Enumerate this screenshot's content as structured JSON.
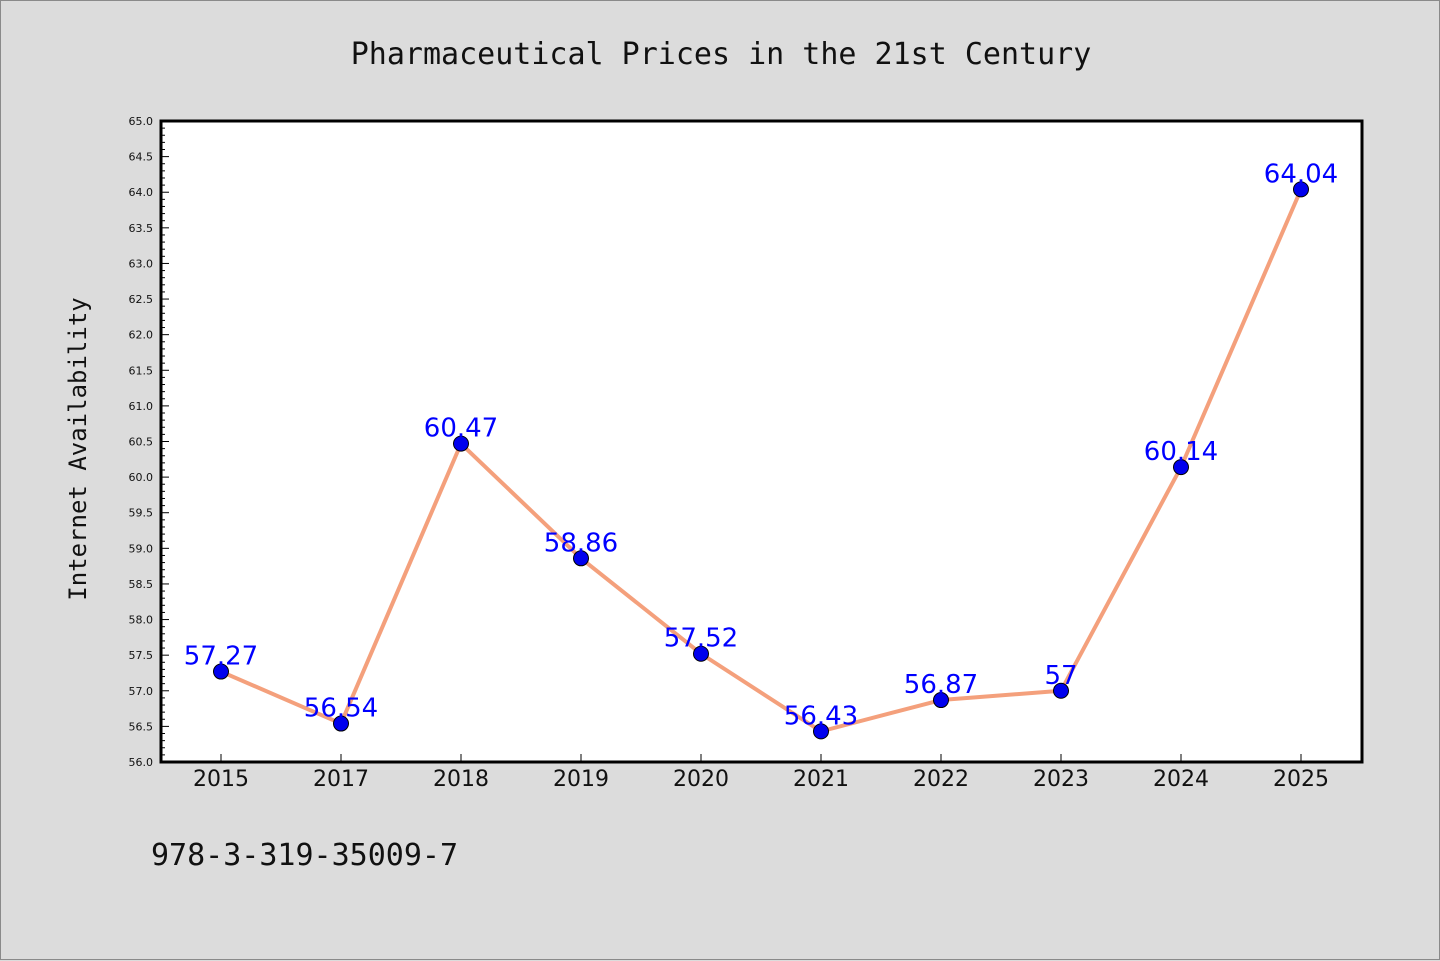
{
  "chart_data": {
    "type": "line",
    "title": "Pharmaceutical Prices in the 21st Century",
    "xlabel": "",
    "ylabel": "Internet Availability",
    "categories": [
      "2015",
      "2017",
      "2018",
      "2019",
      "2020",
      "2021",
      "2022",
      "2023",
      "2024",
      "2025"
    ],
    "series": [
      {
        "values": [
          57.27,
          56.54,
          60.47,
          58.86,
          57.52,
          56.43,
          56.87,
          57.0,
          60.14,
          64.04
        ],
        "data_labels": [
          "57.27",
          "56.54",
          "60.47",
          "58.86",
          "57.52",
          "56.43",
          "56.87",
          "57",
          "60.14",
          "64.04"
        ],
        "line_color": "#f4a07c",
        "marker_color": "#0000ee"
      }
    ],
    "ylim": [
      56.0,
      65.0
    ],
    "yticks": [
      "56.0",
      "56.5",
      "57.0",
      "57.5",
      "58.0",
      "58.5",
      "59.0",
      "59.5",
      "60.0",
      "60.5",
      "61.0",
      "61.5",
      "62.0",
      "62.5",
      "63.0",
      "63.5",
      "64.0",
      "64.5",
      "65.0"
    ],
    "grid": false,
    "label_color": "#0000ff"
  },
  "footer": {
    "isbn": "978-3-319-35009-7"
  }
}
